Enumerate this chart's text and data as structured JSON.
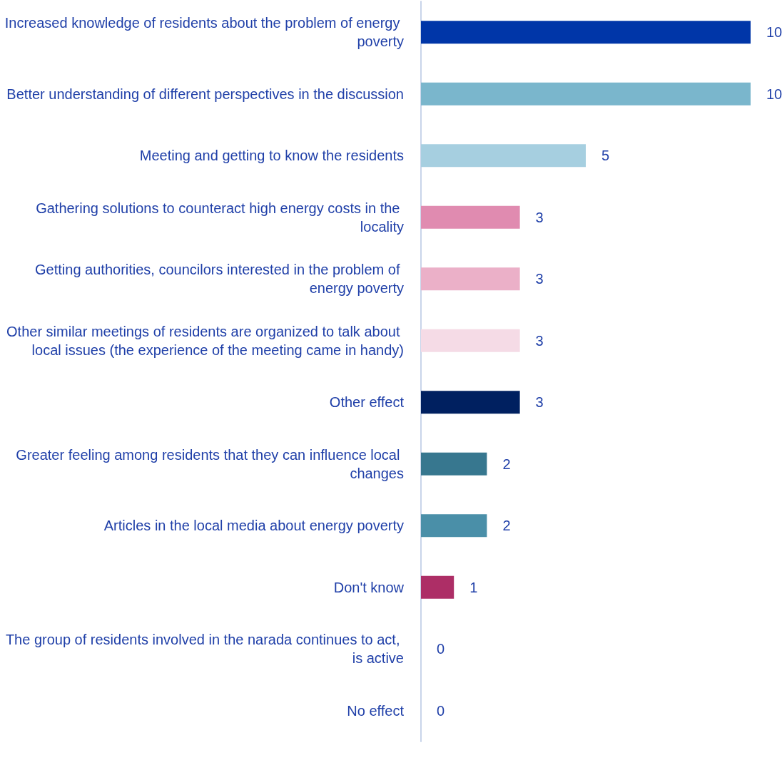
{
  "chart_data": {
    "type": "bar",
    "orientation": "horizontal",
    "data_labels": true,
    "categories": [
      "Increased knowledge of residents about the problem of energy poverty",
      "Better understanding of different perspectives in the discussion",
      "Meeting and getting to know the residents",
      "Gathering solutions to counteract high energy costs in the locality",
      "Getting authorities, councilors interested in the problem of energy poverty",
      "Other similar meetings of residents are organized to talk about local issues (the experience of the meeting came in handy)",
      "Other effect",
      "Greater feeling among residents that they can influence local changes",
      "Articles in the local media about energy poverty",
      "Don't know",
      "The group of residents involved in the narada continues to act, is active",
      "No effect"
    ],
    "values": [
      10,
      10,
      5,
      3,
      3,
      3,
      3,
      2,
      2,
      1,
      0,
      0
    ],
    "colors": [
      "#0036a8",
      "#7ab6cc",
      "#a6cfe0",
      "#e08bb0",
      "#ebb0c8",
      "#f5dbe6",
      "#002060",
      "#37778f",
      "#4a8fa8",
      "#ad2e66",
      "#4a8fa8",
      "#4a8fa8"
    ]
  }
}
